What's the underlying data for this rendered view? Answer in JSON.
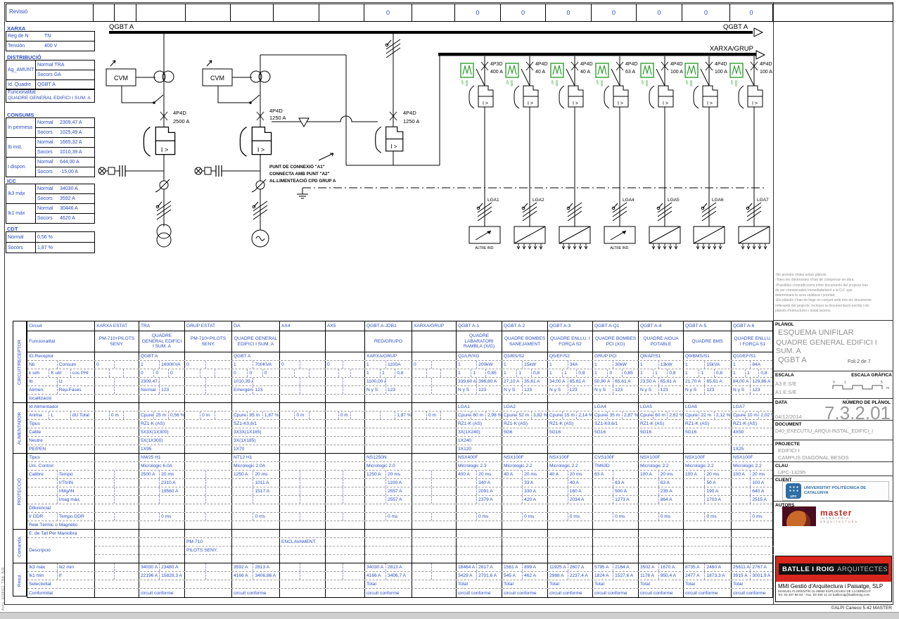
{
  "strip": {
    "revisio": "Revisió",
    "cells": [
      "",
      "",
      "",
      "",
      "",
      "",
      "",
      "0",
      "",
      "0",
      "0",
      "0",
      "0",
      "0",
      "0",
      "0",
      ""
    ]
  },
  "left_panel": {
    "xarxa_title": "XARXA",
    "reg_label": "Reg.de N",
    "reg_value": "TN",
    "tension_label": "Tensión",
    "tension_value": "400 V",
    "distribucio_title": "DISTRIBUCIÓ",
    "ag_label": "Ag_AMUNT",
    "ag_normal": "Normal TRA",
    "ag_socors": "Socors GA",
    "id_quadre_label": "Id. Quadre",
    "id_quadre_value": "QGBT A",
    "func_label": "Funcionalitat",
    "func_value": "QUADRE GENERAL EDIFICI I SUM. A",
    "consums_title": "CONSUMS",
    "consums": [
      {
        "label": "In permesa",
        "nl": "Normal",
        "nv": "2309,47 A",
        "sl": "Socors",
        "sv": "1025,49 A"
      },
      {
        "label": "Ib inst.",
        "nl": "Normal",
        "nv": "1665,32 A",
        "sl": "Socors",
        "sv": "1010,39 A"
      },
      {
        "label": "I dispon.",
        "nl": "Normal",
        "nv": "644,00 A",
        "sl": "Socors",
        "sv": "-15,00 A"
      }
    ],
    "icc_title": "ICC",
    "icc": [
      {
        "label": "Ik3 máx",
        "nl": "Normal",
        "nv": "34030 A",
        "sl": "Socors",
        "sv": "3592 A"
      },
      {
        "label": "Ik1 máx",
        "nl": "Normal",
        "nv": "30446 A",
        "sl": "Socors",
        "sv": "4620 A"
      }
    ],
    "cdt_title": "CDT",
    "cdt": [
      {
        "label": "Normal",
        "value": "0,56 %"
      },
      {
        "label": "Socors",
        "value": "1,87 %"
      }
    ]
  },
  "schematic": {
    "busbar_left": "QGBT A",
    "busbar_right": "QGBT A",
    "busbar2": "XARXA/GRUP",
    "cvm1": "CVM",
    "cvm2": "CVM",
    "trip": "I >",
    "b1_type": "4P4D",
    "b1_amp": "2500 A",
    "b2_type": "4P4D",
    "b2_amp": "1250 A",
    "bm_type": "4P4D",
    "bm_amp": "1250 A",
    "punt_line1": "PUNT DE CONNEXIÓ \"A1\"",
    "punt_line2": "CONNECTA AMB PUNT \"A2\"",
    "punt_line3": "AL.LIMENTEACIÓ CPD GRUP A",
    "altre_ind": "ALTRE IND.",
    "meter_tag1": "OF",
    "meter_tag2": "SDE",
    "feeders": [
      {
        "type": "4P3D",
        "amp": "400 A",
        "lga": "LGA1",
        "load": "single"
      },
      {
        "type": "4P4D",
        "amp": "40 A",
        "lga": "LGA2",
        "load": "multi"
      },
      {
        "type": "4P4D",
        "amp": "40 A",
        "lga": "",
        "load": "multi"
      },
      {
        "type": "4P4D",
        "amp": "63 A",
        "lga": "LGA4",
        "load": "single"
      },
      {
        "type": "4P4D",
        "amp": "100 A",
        "lga": "LGA5",
        "load": "multi"
      },
      {
        "type": "4P4D",
        "amp": "100 A",
        "lga": "LGA6",
        "load": "multi"
      },
      {
        "type": "4P4D",
        "amp": "100 A",
        "lga": "LGA7",
        "load": "multi"
      }
    ]
  },
  "table": {
    "sections": [
      "CIRCUIT/RECEPTOR",
      "ALIMENTADOR",
      "PROTECCIÓ",
      "Comanda.",
      "Resul."
    ],
    "columns": [
      {
        "name": "XARXA ESTAT",
        "func": "PM-710+PILOTS SENY.",
        "nb": "0",
        "L": "0 m"
      },
      {
        "name": "TRA",
        "func": "QUADRE GENERAL EDIFICI I SUM. A",
        "idr": "QGBT A",
        "nb": "1",
        "consum": "1600KVA",
        "ksim": "0",
        "kutil": "0",
        "cosphi": "0",
        "ib": "2309,47 A",
        "alimen": "Normal",
        "rep": "123",
        "anima": "Cpure",
        "L": "25 m",
        "du": "0,56 %",
        "tipusc": "RZ1-K (AS)",
        "cable": "5X3X(1X300)",
        "neutre": "5X(1X300)",
        "pepen": "1X95",
        "tipusp": "NW25 H1",
        "uc": "Micrologic 6.0A",
        "calibre": "2500 A",
        "tempo": "20 ms",
        "irth": "2310 A",
        "irmg": "19560 A",
        "tempoddr": "0 ms",
        "ik3": "34030 A",
        "ik2": "23480 A",
        "ik1": "22196 A",
        "ifv": "15828,3 A",
        "conf": "circuit conforme"
      },
      {
        "name": "GRUP ESTAT",
        "func": "PM-710+PILOTS SENY.",
        "nb": "0",
        "L": "0 m",
        "desc": [
          "PM-710",
          "PILOTS SENY."
        ]
      },
      {
        "name": "GA",
        "func": "QUADRE GENERAL EDIFICI I SUM. A",
        "idr": "QGBT A",
        "nb": "1",
        "consum": "700KVA",
        "ksim": "0",
        "kutil": "0",
        "cosphi": "0",
        "ib": "1010,39 A",
        "alimen": "Emergència",
        "rep": "123",
        "anima": "Cpure",
        "L": "85 m",
        "du": "1,87 %",
        "tipusc": "SZ1-K0,6/1",
        "cable": "3X3X(1X185)",
        "neutre": "3X(1X185)",
        "pepen": "1X70",
        "tipusp": "NT12 H1",
        "uc": "Micrologic 2.0A",
        "calibre": "1250 A",
        "tempo": "20 ms",
        "irth": "1011 A",
        "irmg": "1517 A",
        "tempoddr": "0 ms",
        "ik3": "3592 A",
        "ik2": "2813 A",
        "ik1": "4166 A",
        "ifv": "3406,86 A",
        "conf": "circuit conforme"
      },
      {
        "name": "AX4",
        "nb": "0",
        "L": "0 m",
        "desc": [
          "ENCLAVAMENT"
        ]
      },
      {
        "name": "AX5",
        "nb": "0",
        "L": "0 m"
      },
      {
        "name": "QGBT A-JDB1",
        "func": "RED/GRUPO",
        "idr": "XARXA/GRUP",
        "nb": "1",
        "consum": "1100A",
        "ksim": "1",
        "kutil": "1",
        "cosphi": "0,8",
        "ib": "1100,00 A",
        "alimen": "N y S",
        "rep": "123",
        "du": "1,87 %",
        "tipusp": "NS1250N",
        "uc": "Micrologic 2.0",
        "calibre": "1250 A",
        "tempo": "20 ms",
        "irth": "1100 A",
        "irmg": "2557 A",
        "imag": "2557 A",
        "tempoddr": "0 ms",
        "ik3": "34030 A",
        "ik2": "2813 A",
        "ik1": "4166 A",
        "ifv": "3406,7 A",
        "selec": "Total",
        "conf": "circuit conforme"
      },
      {
        "name": "XARXA/GRUP",
        "nb": "0",
        "L": "0 m"
      },
      {
        "name": "QGBT A-1",
        "func": "QUADRE LABARATORI RAMBLA (X/G)",
        "idr": "Q1/LR/XG",
        "nb": "1",
        "consum": "200kW",
        "ksim": "1",
        "kutil": "1",
        "cosphi": "0,85",
        "ib": "339,60 A",
        "iz": "396,80 A",
        "alimen": "N y S",
        "rep": "123",
        "idalim": "LGA1",
        "anima": "Cpure",
        "L": "60 m",
        "du": "2,98 %",
        "tipusc": "RZ1-K (AS)",
        "cable": "3X(1X240)",
        "neutre": "1X240",
        "pepen": "1X120",
        "tipusp": "NSX400F",
        "uc": "Micrologic 2.3",
        "calibre": "400 A",
        "tempo": "20 ms",
        "irth": "340 A",
        "irmg": "2091 A",
        "imag": "2379 A",
        "tempoddr": "0 ms",
        "ik3": "18464 A",
        "ik2": "2617 A",
        "ik1": "3429 A",
        "ifv": "2701,6 A",
        "selec": "Total",
        "conf": "circuit conforme"
      },
      {
        "name": "QGBT A-2",
        "func": "QUADRE BOMBES SANEJAMENT",
        "idr": "Q3/BS/S2",
        "nb": "1",
        "consum": "15kW",
        "ksim": "1",
        "kutil": "1",
        "cosphi": "0,8",
        "ib": "27,10 A",
        "iz": "35,61 A",
        "alimen": "N y S",
        "rep": "123",
        "idalim": "LGA2",
        "anima": "Cpure",
        "L": "52 m",
        "du": "3,82 %",
        "tipusc": "RZ1-K (AS)",
        "cable": "5G6",
        "tipusp": "NSX100F",
        "uc": "Micrologic 2.2",
        "calibre": "40 A",
        "tempo": "20 ms",
        "irth": "33 A",
        "irmg": "330 A",
        "imag": "420 A",
        "tempoddr": "0 ms",
        "ik3": "1561 A",
        "ik2": "899 A",
        "ik1": "545 A",
        "ifv": "462 A",
        "selec": "Total",
        "conf": "circuit conforme"
      },
      {
        "name": "QGBT A-3",
        "func": "QUADRE ENLLU. I FORÇA S2",
        "idr": "Q5/EF/S2",
        "nb": "1",
        "consum": "34A",
        "ksim": "1",
        "kutil": "1",
        "cosphi": "0,8",
        "ib": "34,00 A",
        "iz": "65,61 A",
        "alimen": "N y S",
        "rep": "123",
        "anima": "Cpure",
        "L": "15 m",
        "du": "2,14 %",
        "tipusc": "RZ1-K (AS)",
        "cable": "5G16",
        "tipusp": "NSX100F",
        "uc": "Micrologic 2.2",
        "calibre": "40 A",
        "tempo": "20 ms",
        "irth": "40 A",
        "irmg": "160 A",
        "imag": "2034 A",
        "tempoddr": "0 ms",
        "ik3": "11925 A",
        "ik2": "2607 A",
        "ik1": "2988 A",
        "ifv": "2237,4 A",
        "selec": "Total",
        "conf": "circuit conforme"
      },
      {
        "name": "QGBT A-Q1",
        "func": "QUADRE BOMBES PCI (XG)",
        "idr": "GRUP PCI",
        "nb": "1",
        "consum": "30kW",
        "ksim": "1",
        "kutil": "0",
        "cosphi": "0,85",
        "ib": "50,90 A",
        "iz": "65,61 A",
        "alimen": "N y S",
        "rep": "123",
        "idalim": "LGA4",
        "anima": "Cpure",
        "L": "35 m",
        "du": "2,87 %",
        "tipusc": "SZ1-K0,6/1",
        "cable": "5G16",
        "tipusp": "CVS100F",
        "uc": "TM63D",
        "calibre": "63 A",
        "irth": "63 A",
        "irmg": "500 A",
        "imag": "1273 A",
        "tempoddr": "0 ms",
        "ik3": "5795 A",
        "ik2": "2164 A",
        "ik1": "1824 A",
        "ifv": "1527,6 A",
        "selec": "Total",
        "conf": "circuit conforme"
      },
      {
        "name": "QGBT A-4",
        "func": "QUADRE AIGUA POTABLE",
        "idr": "Q8/AP/S1",
        "nb": "1",
        "consum": "13kW",
        "ksim": "1",
        "kutil": "1",
        "cosphi": "0,8",
        "ib": "23,50 A",
        "iz": "65,61 A",
        "alimen": "N y S",
        "rep": "123",
        "idalim": "LGA5",
        "anima": "Cpure",
        "L": "60 m",
        "du": "2,62 %",
        "tipusc": "RZ1-K (AS)",
        "cable": "5G16",
        "tipusp": "NSX100F",
        "uc": "Micrologic 2.2",
        "calibre": "100 A",
        "tempo": "20 ms",
        "irth": "63 A",
        "irmg": "235 A",
        "imag": "864 A",
        "tempoddr": "0 ms",
        "ik3": "3502 A",
        "ik2": "1670 A",
        "ik1": "1176 A",
        "ifv": "950,4 A",
        "selec": "Total",
        "conf": "circuit conforme"
      },
      {
        "name": "QGBT A-5",
        "func": "QUADRE BMS",
        "idr": "Q9/BMS/S1",
        "nb": "1",
        "consum": "15kVA",
        "ksim": "1",
        "kutil": "1",
        "cosphi": "0,8",
        "ib": "21,70 A",
        "iz": "65,61 A",
        "alimen": "N y S",
        "rep": "123",
        "idalim": "LGA6",
        "anima": "Cpure",
        "L": "22 m",
        "du": "2,12 %",
        "tipusc": "RZ1-K (AS)",
        "cable": "5G16",
        "tipusp": "NSX100F",
        "uc": "Micrologic 2.2",
        "calibre": "100 A",
        "tempo": "20 ms",
        "irth": "50 A",
        "irmg": "190 A",
        "imag": "1703 A",
        "tempoddr": "0 ms",
        "ik3": "8735 A",
        "ik2": "2460 A",
        "ik1": "2477 A",
        "ifv": "1873,3 A",
        "selec": "Total",
        "conf": "circuit conforme"
      },
      {
        "name": "QGBT A-6",
        "func": "QUADRE ENLLU. I FORÇA S1",
        "idr": "Q10/EF/S1",
        "nb": "1",
        "consum": "84A",
        "ksim": "1",
        "kutil": "1",
        "cosphi": "0,8",
        "ib": "84,00 A",
        "iz": "129,86 A",
        "alimen": "N y S",
        "rep": "123",
        "idalim": "LGA7",
        "anima": "Cpure",
        "L": "10 m",
        "du": "2,02 %",
        "tipusc": "RZ1-K (AS)",
        "cable": "4X50",
        "pepen": "1X25",
        "tipusp": "NSX100F",
        "uc": "Micrologic 2.2",
        "calibre": "100 A",
        "tempo": "20 ms",
        "irth": "100 A",
        "irmg": "640 A",
        "imag": "2515 A",
        "tempoddr": "0 ms",
        "ik3": "25611 A",
        "ik2": "2767 A",
        "ik1": "3915 A",
        "ifv": "3001,9 A",
        "selec": "Total",
        "conf": "circuit conforme"
      }
    ]
  },
  "title_block": {
    "notes": [
      "-No prendre mides sobre plànols.",
      "-Totes les dimensions s'han de comprovar en obra.",
      "-Possibles contradiccions entre documents del projecte han",
      "de ser comunicades immediatament a la D.F. que",
      "determinarà la seva validesa i prioritat.",
      "-Els plànols s'han de llegir en conjunt amb tots els documents",
      "rellevants del projecte, incloses la documentació escrita i els",
      "plànols d'estructures i instal.lacions."
    ],
    "planol_label": "PLÀNOL",
    "planol_line1": "ESQUEMA UNIFILAR",
    "planol_line2": "QUADRE GENERAL EDIFICI I SUM. A",
    "planol_line3": "QGBT A",
    "foli": "Foli  2  de 7",
    "escala_label": "ESCALA",
    "escala_grafica_label": "ESCALA GRÀFICA",
    "escala_a3": "A3 E:S/E",
    "escala_a1": "A1 E:S/E",
    "scale_0": "0",
    "scale_1": "1",
    "scale_5": "5",
    "scale_m": "m",
    "data_label": "DATA",
    "data_value": "04/12/2014",
    "num_label": "NÚMERO DE PLÀNOL",
    "num_value": "7.3.2.01",
    "document_label": "DOCUMENT",
    "document_value": "D40_EXECUTIU_ARQUI-INSTAL_EDIFICI_I",
    "projecte_label": "PROJECTE",
    "projecte_line1": "EDIFICI I",
    "projecte_line2": "CAMPUS DIAGONAL BESOS",
    "clau_label": "CLAU",
    "clau_value": "UPC-13295",
    "client_label": "CLIENT",
    "client_logo_text": "UPC",
    "client_name": "UNIVERSITAT POLITÈCNICA DE CATALUNYA",
    "autors_label": "AUTORS",
    "autors_logo": "master",
    "autors_sub1": "INGENIERIA",
    "autors_sub2": "ARQUITECTURA",
    "firm_name": "BATLLE I ROIG",
    "firm_suffix": "ARQUITECTES",
    "firm_line1": "MMI Gestió d'Arquitectura i Paisatge, SLP",
    "firm_line2": "MANUEL FLORENTÍN 15   08950 ESPLUGUES DE LLOBREGAT",
    "firm_line3": "Tel. 93 457 98 84 - Fax. 93 459 12 24    batlleroig@batlleiroig.com"
  },
  "footer": {
    "credit": "©ALPI Caneco 5.42 MASTER",
    "arxiu": "Arxiu: EDIFICI_TRA_A/R"
  }
}
